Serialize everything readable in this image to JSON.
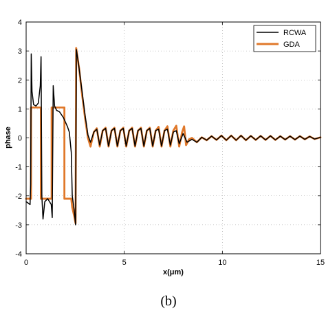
{
  "chart_data": {
    "type": "line",
    "title": "",
    "xlabel": "x(μm)",
    "ylabel": "phase",
    "panel_label": "(b)",
    "xlim": [
      0,
      15
    ],
    "ylim": [
      -4,
      4
    ],
    "xticks": [
      "0",
      "5",
      "10",
      "15"
    ],
    "yticks": [
      "-4",
      "-3",
      "-2",
      "-1",
      "0",
      "1",
      "2",
      "3",
      "4"
    ],
    "grid": "dotted",
    "legend_position": "top-right",
    "series": [
      {
        "name": "RCWA",
        "color": "#000000",
        "points": [
          [
            0.0,
            -2.2
          ],
          [
            0.1,
            -2.25
          ],
          [
            0.2,
            -2.3
          ],
          [
            0.23,
            -1.6
          ],
          [
            0.26,
            2.9
          ],
          [
            0.3,
            1.6
          ],
          [
            0.38,
            1.15
          ],
          [
            0.5,
            1.1
          ],
          [
            0.62,
            1.2
          ],
          [
            0.72,
            1.8
          ],
          [
            0.76,
            2.8
          ],
          [
            0.8,
            -2.0
          ],
          [
            0.86,
            -2.8
          ],
          [
            0.95,
            -2.2
          ],
          [
            1.1,
            -2.1
          ],
          [
            1.28,
            -2.3
          ],
          [
            1.33,
            -2.75
          ],
          [
            1.38,
            1.8
          ],
          [
            1.45,
            1.1
          ],
          [
            1.55,
            0.95
          ],
          [
            1.7,
            0.9
          ],
          [
            1.9,
            0.7
          ],
          [
            2.1,
            0.4
          ],
          [
            2.2,
            0.2
          ],
          [
            2.3,
            -0.5
          ],
          [
            2.35,
            -2.0
          ],
          [
            2.45,
            -2.5
          ],
          [
            2.52,
            -3.0
          ],
          [
            2.56,
            3.05
          ],
          [
            2.68,
            2.5
          ],
          [
            2.85,
            1.6
          ],
          [
            3.0,
            0.8
          ],
          [
            3.15,
            0.1
          ],
          [
            3.28,
            -0.15
          ],
          [
            3.45,
            0.2
          ],
          [
            3.6,
            0.3
          ],
          [
            3.75,
            -0.25
          ],
          [
            3.9,
            0.25
          ],
          [
            4.05,
            0.33
          ],
          [
            4.2,
            -0.28
          ],
          [
            4.35,
            0.25
          ],
          [
            4.5,
            0.33
          ],
          [
            4.65,
            -0.28
          ],
          [
            4.8,
            0.25
          ],
          [
            4.95,
            0.33
          ],
          [
            5.1,
            -0.28
          ],
          [
            5.25,
            0.25
          ],
          [
            5.4,
            0.33
          ],
          [
            5.55,
            -0.28
          ],
          [
            5.7,
            0.25
          ],
          [
            5.85,
            0.33
          ],
          [
            6.0,
            -0.28
          ],
          [
            6.15,
            0.25
          ],
          [
            6.3,
            0.33
          ],
          [
            6.45,
            -0.28
          ],
          [
            6.6,
            0.25
          ],
          [
            6.75,
            0.3
          ],
          [
            6.9,
            -0.28
          ],
          [
            7.05,
            0.25
          ],
          [
            7.2,
            0.3
          ],
          [
            7.35,
            -0.25
          ],
          [
            7.5,
            0.2
          ],
          [
            7.65,
            0.25
          ],
          [
            7.8,
            -0.2
          ],
          [
            8.0,
            0.15
          ],
          [
            8.2,
            -0.15
          ],
          [
            8.45,
            -0.05
          ],
          [
            8.7,
            -0.15
          ],
          [
            8.95,
            0.02
          ],
          [
            9.2,
            -0.08
          ],
          [
            9.45,
            0.06
          ],
          [
            9.7,
            -0.07
          ],
          [
            9.95,
            0.08
          ],
          [
            10.2,
            -0.08
          ],
          [
            10.45,
            0.08
          ],
          [
            10.7,
            -0.08
          ],
          [
            10.95,
            0.08
          ],
          [
            11.2,
            -0.08
          ],
          [
            11.45,
            0.07
          ],
          [
            11.7,
            -0.07
          ],
          [
            11.95,
            0.07
          ],
          [
            12.2,
            -0.07
          ],
          [
            12.45,
            0.07
          ],
          [
            12.7,
            -0.07
          ],
          [
            12.95,
            0.06
          ],
          [
            13.2,
            -0.06
          ],
          [
            13.45,
            0.06
          ],
          [
            13.7,
            -0.06
          ],
          [
            13.95,
            0.06
          ],
          [
            14.2,
            -0.05
          ],
          [
            14.45,
            0.05
          ],
          [
            14.7,
            -0.04
          ],
          [
            15.0,
            0.02
          ]
        ]
      },
      {
        "name": "GDA",
        "color": "#e0782a",
        "points": [
          [
            0.0,
            -2.1
          ],
          [
            0.25,
            -2.1
          ],
          [
            0.25,
            1.05
          ],
          [
            0.75,
            1.05
          ],
          [
            0.75,
            -2.1
          ],
          [
            1.3,
            -2.1
          ],
          [
            1.3,
            1.05
          ],
          [
            1.95,
            1.05
          ],
          [
            1.95,
            -2.1
          ],
          [
            2.3,
            -2.1
          ],
          [
            2.35,
            -2.4
          ],
          [
            2.45,
            -2.7
          ],
          [
            2.52,
            -2.95
          ],
          [
            2.55,
            3.1
          ],
          [
            2.7,
            2.4
          ],
          [
            2.85,
            1.5
          ],
          [
            3.0,
            0.7
          ],
          [
            3.15,
            0.0
          ],
          [
            3.28,
            -0.3
          ],
          [
            3.45,
            0.2
          ],
          [
            3.6,
            0.33
          ],
          [
            3.75,
            -0.3
          ],
          [
            3.9,
            0.25
          ],
          [
            4.05,
            0.35
          ],
          [
            4.2,
            -0.3
          ],
          [
            4.35,
            0.25
          ],
          [
            4.5,
            0.35
          ],
          [
            4.65,
            -0.3
          ],
          [
            4.8,
            0.25
          ],
          [
            4.95,
            0.35
          ],
          [
            5.1,
            -0.3
          ],
          [
            5.25,
            0.25
          ],
          [
            5.4,
            0.35
          ],
          [
            5.55,
            -0.3
          ],
          [
            5.7,
            0.25
          ],
          [
            5.85,
            0.35
          ],
          [
            6.0,
            -0.3
          ],
          [
            6.15,
            0.25
          ],
          [
            6.3,
            0.35
          ],
          [
            6.45,
            -0.3
          ],
          [
            6.6,
            0.25
          ],
          [
            6.75,
            0.38
          ],
          [
            6.9,
            -0.3
          ],
          [
            7.05,
            0.25
          ],
          [
            7.2,
            0.4
          ],
          [
            7.35,
            -0.3
          ],
          [
            7.5,
            0.25
          ],
          [
            7.65,
            0.42
          ],
          [
            7.8,
            -0.3
          ],
          [
            7.95,
            0.2
          ],
          [
            8.05,
            0.4
          ],
          [
            8.15,
            -0.25
          ],
          [
            8.3,
            -0.05
          ],
          [
            8.45,
            0.0
          ],
          [
            8.7,
            -0.15
          ],
          [
            8.95,
            0.02
          ],
          [
            9.2,
            -0.08
          ],
          [
            9.45,
            0.06
          ],
          [
            9.7,
            -0.07
          ],
          [
            9.95,
            0.08
          ],
          [
            10.2,
            -0.08
          ],
          [
            10.45,
            0.08
          ],
          [
            10.7,
            -0.08
          ],
          [
            10.95,
            0.08
          ],
          [
            11.2,
            -0.08
          ],
          [
            11.45,
            0.07
          ],
          [
            11.7,
            -0.07
          ],
          [
            11.95,
            0.07
          ],
          [
            12.2,
            -0.07
          ],
          [
            12.45,
            0.07
          ],
          [
            12.7,
            -0.07
          ],
          [
            12.95,
            0.06
          ],
          [
            13.2,
            -0.06
          ],
          [
            13.45,
            0.06
          ],
          [
            13.7,
            -0.06
          ],
          [
            13.95,
            0.06
          ],
          [
            14.2,
            -0.05
          ],
          [
            14.45,
            0.05
          ],
          [
            14.7,
            -0.04
          ],
          [
            15.0,
            0.02
          ]
        ]
      }
    ]
  }
}
